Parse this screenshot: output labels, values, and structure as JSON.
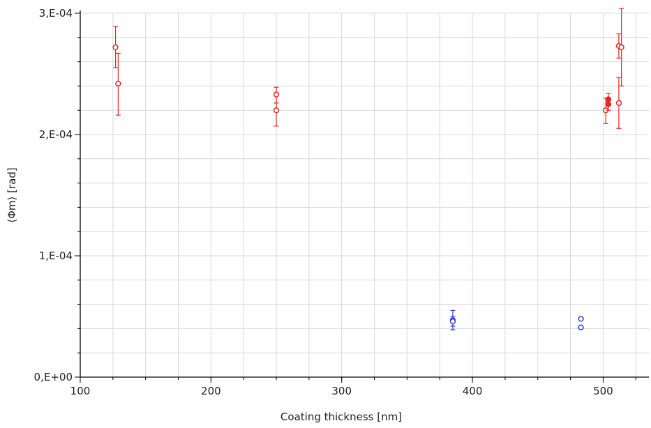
{
  "chart_data": {
    "type": "scatter",
    "title": "",
    "xlabel": "Coating thickness [nm]",
    "ylabel": "⟨Φm⟩ [rad]",
    "xlim": [
      100,
      535
    ],
    "ylim": [
      0,
      0.0003
    ],
    "xticks": [
      100,
      200,
      300,
      400,
      500
    ],
    "xtick_labels": [
      "100",
      "200",
      "300",
      "400",
      "500"
    ],
    "yticks": [
      0,
      0.0001,
      0.0002,
      0.0003
    ],
    "ytick_labels": [
      "0,E+00",
      "1,E-04",
      "2,E-04",
      "3,E-04"
    ],
    "grid": true,
    "legend": "none",
    "series": [
      {
        "color": "#e8241f",
        "points": [
          {
            "x": 127,
            "y": 0.000272,
            "yerr_low": 0.000255,
            "yerr_high": 0.000289
          },
          {
            "x": 129,
            "y": 0.000242,
            "yerr_low": 0.000216,
            "yerr_high": 0.000267
          },
          {
            "x": 250,
            "y": 0.000233,
            "yerr_low": 0.000226,
            "yerr_high": 0.000239
          },
          {
            "x": 250,
            "y": 0.00022,
            "yerr_low": 0.000207,
            "yerr_high": 0.000226
          },
          {
            "x": 502,
            "y": 0.00022,
            "yerr_low": 0.000209,
            "yerr_high": 0.00023
          },
          {
            "x": 504,
            "y": 0.000229,
            "yerr_low": 0.000224,
            "yerr_high": 0.000234,
            "filled": true
          },
          {
            "x": 504,
            "y": 0.000225,
            "yerr_low": 0.00022,
            "yerr_high": 0.00023,
            "filled": true
          },
          {
            "x": 512,
            "y": 0.000273,
            "yerr_low": 0.000263,
            "yerr_high": 0.000283
          },
          {
            "x": 514,
            "y": 0.000272,
            "yerr_low": 0.00024,
            "yerr_high": 0.000304
          },
          {
            "x": 512,
            "y": 0.000226,
            "yerr_low": 0.000205,
            "yerr_high": 0.000247
          }
        ]
      },
      {
        "color": "#2a3bd6",
        "points": [
          {
            "x": 385,
            "y": 4.7e-05,
            "yerr_low": 3.9e-05,
            "yerr_high": 5.5e-05
          },
          {
            "x": 385,
            "y": 4.6e-05,
            "yerr_low": 4.2e-05,
            "yerr_high": 5e-05
          },
          {
            "x": 483,
            "y": 4.8e-05
          },
          {
            "x": 483,
            "y": 4.1e-05
          }
        ]
      }
    ]
  }
}
